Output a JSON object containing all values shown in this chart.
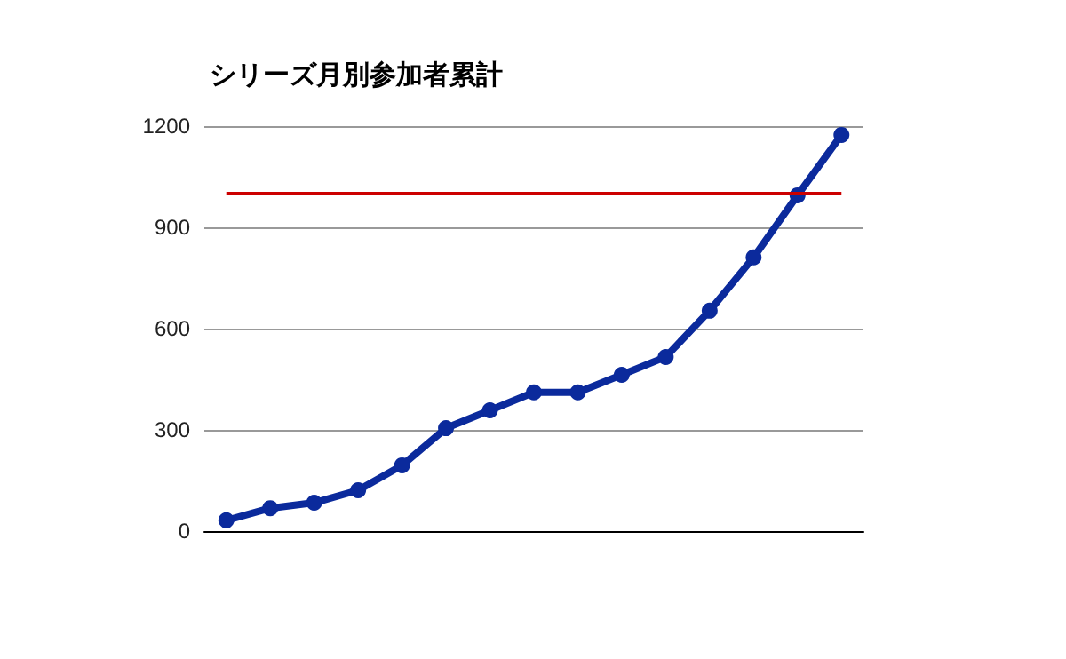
{
  "chart_data": {
    "type": "line",
    "title": "シリーズ月別参加者累計",
    "categories": [
      null,
      null,
      null,
      null,
      null,
      null,
      null,
      null,
      null,
      null,
      null,
      null,
      null,
      null,
      null
    ],
    "series": [
      {
        "color": "#0b2a9c",
        "values": [
          32,
          68,
          84,
          121,
          195,
          305,
          358,
          411,
          411,
          463,
          516,
          653,
          811,
          995,
          1174
        ]
      }
    ],
    "ylim": [
      0,
      1200
    ],
    "yticks": [
      0,
      300,
      600,
      900,
      1200
    ],
    "grid": "y",
    "marker": "circle",
    "line_style": "solid",
    "ref_lines": [
      {
        "axis": "y",
        "value": 1000,
        "color": "#cc0000"
      }
    ]
  }
}
